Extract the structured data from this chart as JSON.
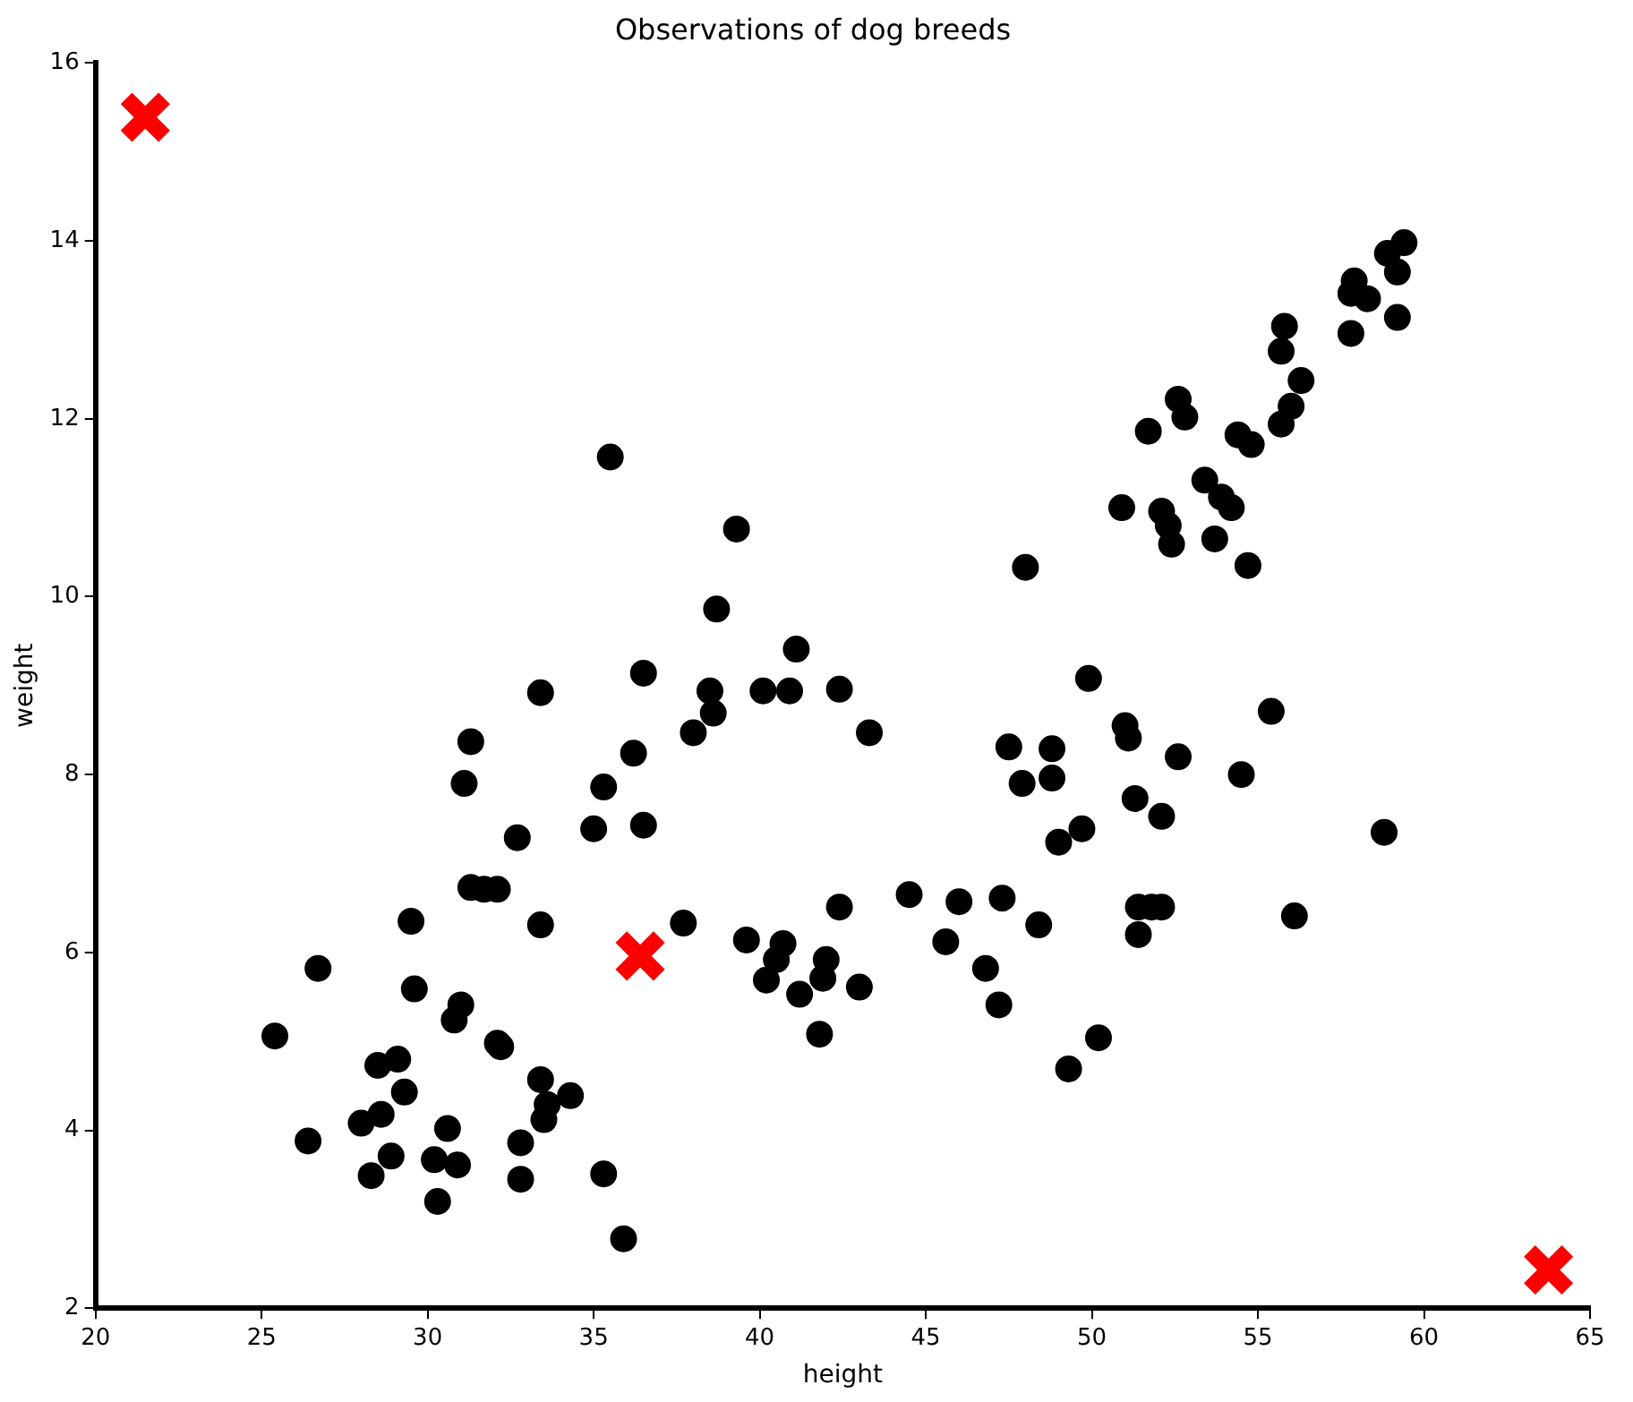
{
  "chart_data": {
    "type": "scatter",
    "title": "Observations of dog breeds",
    "xlabel": "height",
    "ylabel": "weight",
    "xlim": [
      20,
      65
    ],
    "xticks": [
      20,
      25,
      30,
      35,
      40,
      45,
      50,
      55,
      60,
      65
    ],
    "ylim": [
      2,
      16
    ],
    "yticks": [
      2,
      4,
      6,
      8,
      10,
      12,
      14,
      16
    ],
    "grid": false,
    "legend": false,
    "series": [
      {
        "color": "#000000",
        "marker": "circle",
        "x": [
          25.4,
          26.4,
          26.7,
          28.3,
          28.0,
          28.5,
          28.6,
          29.1,
          28.9,
          29.3,
          29.5,
          29.6,
          30.2,
          30.3,
          30.6,
          30.9,
          30.8,
          31.0,
          31.1,
          31.3,
          31.3,
          31.7,
          32.1,
          32.1,
          32.2,
          32.8,
          32.7,
          32.8,
          33.4,
          33.4,
          33.4,
          33.5,
          33.6,
          34.3,
          35.0,
          35.3,
          35.3,
          35.5,
          35.9,
          36.2,
          36.5,
          36.5,
          37.7,
          39.3,
          38.7,
          41.1,
          38.5,
          38.6,
          38.0,
          40.1,
          40.9,
          42.4,
          43.3,
          44.5,
          42.4,
          39.6,
          40.7,
          40.5,
          42.0,
          41.9,
          40.2,
          41.2,
          43.0,
          41.8,
          59.4,
          58.9,
          59.2,
          57.9,
          58.3,
          57.8,
          59.2,
          57.8,
          55.8,
          55.7,
          56.3,
          56.0,
          55.7,
          52.6,
          52.8,
          51.7,
          54.4,
          54.8,
          53.4,
          53.9,
          54.2,
          50.9,
          52.1,
          52.3,
          52.4,
          53.7,
          54.7,
          48.0,
          49.9,
          55.4,
          47.5,
          48.8,
          51.0,
          51.1,
          52.6,
          54.5,
          47.9,
          48.8,
          51.3,
          52.1,
          49.7,
          49.0,
          58.8,
          46.0,
          47.3,
          48.4,
          51.4,
          51.8,
          52.1,
          51.4,
          56.1,
          45.6,
          46.8,
          47.2,
          50.2,
          49.3
        ],
        "values": [
          5.06,
          3.88,
          5.82,
          3.49,
          4.08,
          4.73,
          4.18,
          4.8,
          3.71,
          4.43,
          6.35,
          5.59,
          3.67,
          3.2,
          4.02,
          3.61,
          5.24,
          5.41,
          7.9,
          8.37,
          6.73,
          6.71,
          6.71,
          4.98,
          4.94,
          3.86,
          7.29,
          3.45,
          8.92,
          6.31,
          4.57,
          4.12,
          4.29,
          4.39,
          7.39,
          7.86,
          3.51,
          11.57,
          2.78,
          8.24,
          7.43,
          9.14,
          6.33,
          10.76,
          9.86,
          9.41,
          8.94,
          8.69,
          8.47,
          8.94,
          8.94,
          8.96,
          8.47,
          6.65,
          6.51,
          6.14,
          6.1,
          5.92,
          5.92,
          5.71,
          5.69,
          5.53,
          5.61,
          5.08,
          13.98,
          13.86,
          13.65,
          13.55,
          13.35,
          13.41,
          13.14,
          12.96,
          13.04,
          12.76,
          12.43,
          12.14,
          11.94,
          12.22,
          12.02,
          11.86,
          11.82,
          11.71,
          11.31,
          11.12,
          11.0,
          11.0,
          10.96,
          10.8,
          10.59,
          10.65,
          10.35,
          10.33,
          9.08,
          8.71,
          8.31,
          8.29,
          8.55,
          8.41,
          8.2,
          8.0,
          7.9,
          7.96,
          7.73,
          7.53,
          7.39,
          7.24,
          7.35,
          6.57,
          6.61,
          6.31,
          6.51,
          6.51,
          6.51,
          6.2,
          6.41,
          6.12,
          5.82,
          5.41,
          5.04,
          4.69
        ]
      },
      {
        "color": "#ff0000",
        "marker": "cross",
        "x": [
          21.5,
          36.4,
          63.75
        ],
        "values": [
          15.39,
          5.96,
          2.43
        ]
      }
    ]
  }
}
